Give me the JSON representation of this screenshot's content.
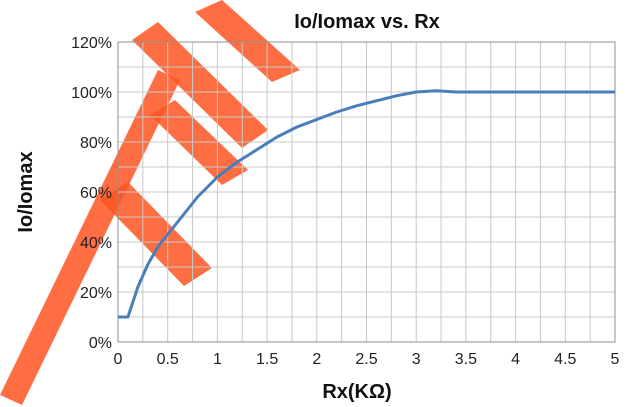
{
  "chart_data": {
    "type": "line",
    "title": "Io/Iomax vs. Rx",
    "xlabel": "Rx(KΩ)",
    "ylabel": "Io/Iomax",
    "xlim": [
      0,
      5
    ],
    "ylim": [
      0,
      120
    ],
    "x_ticks": [
      "0",
      "0.5",
      "1",
      "1.5",
      "2",
      "2.5",
      "3",
      "3.5",
      "4",
      "4.5",
      "5"
    ],
    "y_ticks": [
      "0%",
      "20%",
      "40%",
      "60%",
      "80%",
      "100%",
      "120%"
    ],
    "grid": true,
    "series_color": "#4a7ebb",
    "series": [
      {
        "x": [
          0,
          0.1,
          0.15,
          0.2,
          0.3,
          0.4,
          0.5,
          0.6,
          0.7,
          0.8,
          0.9,
          1.0,
          1.2,
          1.4,
          1.6,
          1.8,
          2.0,
          2.2,
          2.4,
          2.6,
          2.8,
          3.0,
          3.2,
          3.4,
          3.6,
          4.0,
          4.5,
          5.0
        ],
        "values": [
          10,
          10,
          16,
          22,
          31,
          38,
          43,
          48,
          53,
          58,
          62,
          66,
          72,
          77,
          82,
          86,
          89,
          92,
          94.5,
          96.5,
          98.5,
          100,
          100.5,
          100,
          100,
          100,
          100,
          100
        ]
      }
    ]
  }
}
